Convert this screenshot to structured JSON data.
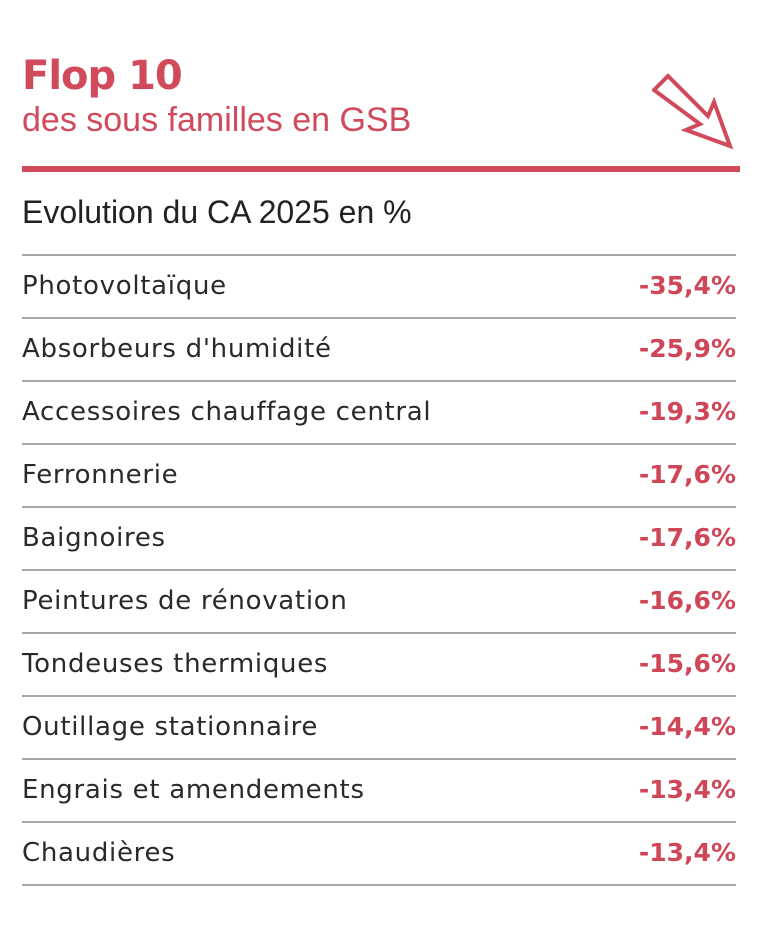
{
  "header": {
    "title": "Flop 10",
    "subtitle": "des sous familles en GSB",
    "icon": "arrow-down-right-icon",
    "accent_color": "#d04a5b"
  },
  "section": {
    "title": "Evolution du CA 2025 en %"
  },
  "rows": [
    {
      "label": "Photovoltaïque",
      "value": "-35,4%"
    },
    {
      "label": "Absorbeurs d'humidité",
      "value": "-25,9%"
    },
    {
      "label": "Accessoires chauffage central",
      "value": "-19,3%"
    },
    {
      "label": "Ferronnerie",
      "value": "-17,6%"
    },
    {
      "label": "Baignoires",
      "value": "-17,6%"
    },
    {
      "label": "Peintures de rénovation",
      "value": "-16,6%"
    },
    {
      "label": "Tondeuses thermiques",
      "value": "-15,6%"
    },
    {
      "label": "Outillage stationnaire",
      "value": "-14,4%"
    },
    {
      "label": "Engrais et amendements",
      "value": "-13,4%"
    },
    {
      "label": "Chaudières",
      "value": "-13,4%"
    }
  ]
}
